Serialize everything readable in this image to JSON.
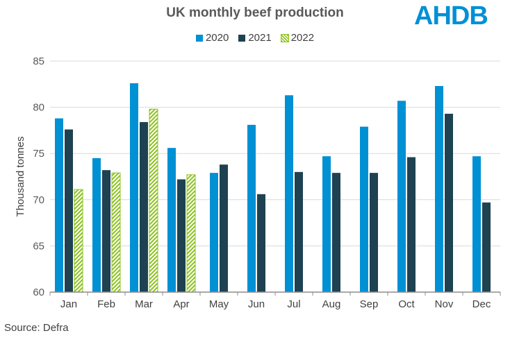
{
  "chart_data": {
    "type": "bar",
    "title": "UK monthly beef production",
    "ylabel": "Thousand tonnes",
    "xlabel": "",
    "ylim": [
      60,
      85
    ],
    "yticks": [
      60,
      65,
      70,
      75,
      80,
      85
    ],
    "grid": true,
    "legend_position": "top",
    "categories": [
      "Jan",
      "Feb",
      "Mar",
      "Apr",
      "May",
      "Jun",
      "Jul",
      "Aug",
      "Sep",
      "Oct",
      "Nov",
      "Dec"
    ],
    "series": [
      {
        "name": "2020",
        "color": "#0090d4",
        "pattern": "solid",
        "values": [
          78.8,
          74.5,
          82.6,
          75.6,
          72.9,
          78.1,
          81.3,
          74.7,
          77.9,
          80.7,
          82.3,
          74.7
        ]
      },
      {
        "name": "2021",
        "color": "#1e4251",
        "pattern": "solid",
        "values": [
          77.6,
          73.2,
          78.4,
          72.2,
          73.8,
          70.6,
          73.0,
          72.9,
          72.9,
          74.6,
          79.3,
          69.7
        ]
      },
      {
        "name": "2022",
        "color": "#8dc21f",
        "pattern": "hatched",
        "values": [
          71.1,
          72.9,
          79.8,
          72.7,
          null,
          null,
          null,
          null,
          null,
          null,
          null,
          null
        ]
      }
    ],
    "source": "Source: Defra"
  },
  "logo": "AHDB"
}
